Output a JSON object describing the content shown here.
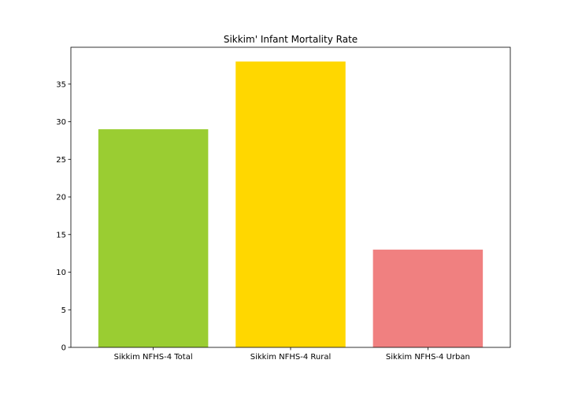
{
  "chart_data": {
    "type": "bar",
    "title": "Sikkim' Infant Mortality Rate",
    "xlabel": "",
    "ylabel": "",
    "categories": [
      "Sikkim NFHS-4 Total",
      "Sikkim NFHS-4 Rural",
      "Sikkim NFHS-4 Urban"
    ],
    "values": [
      29,
      38,
      13
    ],
    "colors": [
      "#9acd32",
      "#ffd700",
      "#f08080"
    ],
    "ylim": [
      0,
      39.9
    ],
    "yticks": [
      0,
      5,
      10,
      15,
      20,
      25,
      30,
      35
    ],
    "grid": false
  }
}
